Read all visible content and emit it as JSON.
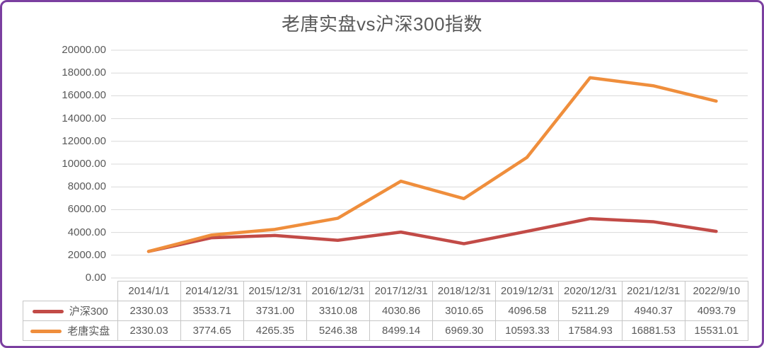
{
  "window": {
    "border_color": "#7B3FA0",
    "background_color": "#FFFFFF"
  },
  "chart_data": {
    "type": "line",
    "title": "老唐实盘vs沪深300指数",
    "xlabel": "",
    "ylabel": "",
    "categories": [
      "2014/1/1",
      "2014/12/31",
      "2015/12/31",
      "2016/12/31",
      "2017/12/31",
      "2018/12/31",
      "2019/12/31",
      "2020/12/31",
      "2021/12/31",
      "2022/9/10"
    ],
    "series": [
      {
        "name": "沪深300",
        "color": "#C24B47",
        "values": [
          2330.03,
          3533.71,
          3731.0,
          3310.08,
          4030.86,
          3010.65,
          4096.58,
          5211.29,
          4940.37,
          4093.79
        ]
      },
      {
        "name": "老唐实盘",
        "color": "#EF8E3C",
        "values": [
          2330.03,
          3774.65,
          4265.35,
          5246.38,
          8499.14,
          6969.3,
          10593.33,
          17584.93,
          16881.53,
          15531.01
        ]
      }
    ],
    "ylim": [
      0,
      20000
    ],
    "y_tick_step": 2000,
    "y_ticks": [
      "20000.00",
      "18000.00",
      "16000.00",
      "14000.00",
      "12000.00",
      "10000.00",
      "8000.00",
      "6000.00",
      "4000.00",
      "2000.00",
      "0.00"
    ],
    "grid": true,
    "gridline_color": "#D9D9D9",
    "text_color": "#595959",
    "legend_position": "data-table-left",
    "value_decimals": 2
  }
}
